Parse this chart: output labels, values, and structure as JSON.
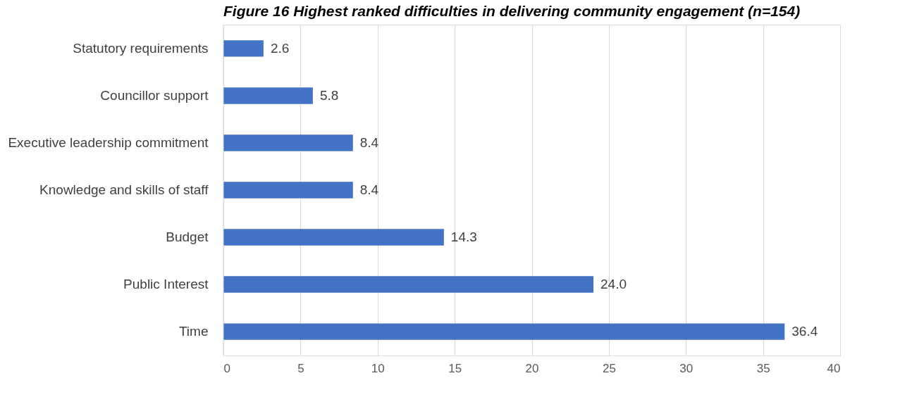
{
  "chart_data": {
    "type": "bar",
    "orientation": "horizontal",
    "title": "Figure 16 Highest ranked difficulties in delivering community engagement (n=154)",
    "categories": [
      "Statutory requirements",
      "Councillor support",
      "Executive leadership commitment",
      "Knowledge and skills of staff",
      "Budget",
      "Public Interest",
      "Time"
    ],
    "values": [
      2.6,
      5.8,
      8.4,
      8.4,
      14.3,
      24.0,
      36.4
    ],
    "value_labels": [
      "2.6",
      "5.8",
      "8.4",
      "8.4",
      "14.3",
      "24.0",
      "36.4"
    ],
    "color": "#4472c4",
    "xlim": [
      0,
      40
    ],
    "xticks": [
      0,
      5,
      10,
      15,
      20,
      25,
      30,
      35,
      40
    ],
    "grid": "x"
  }
}
